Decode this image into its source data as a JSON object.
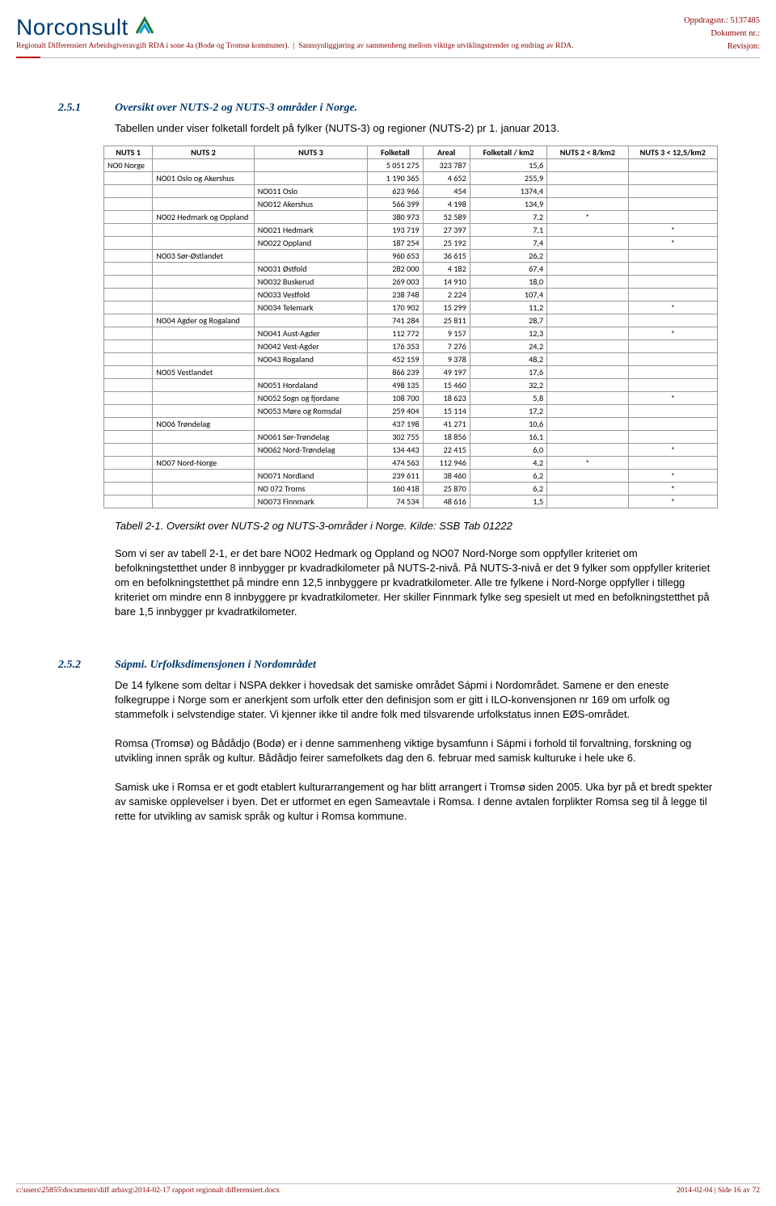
{
  "header": {
    "logo_name": "Norconsult",
    "sub_left": "Regionalt Differensiert Arbeidsgiveravgift RDA i sone 4a (Bodø og Tromsø kommuner).",
    "sub_right": "Sannsynliggjøring av sammenheng mellom viktige utviklingstrender og endring av RDA.",
    "right_l1": "Oppdragsnr.: 5137485",
    "right_l2": "Dokument nr.:",
    "right_l3": "Revisjon:"
  },
  "sec1": {
    "num": "2.5.1",
    "title": "Oversikt over NUTS-2 og NUTS-3 områder i Norge.",
    "intro": "Tabellen under viser folketall fordelt på fylker (NUTS-3) og regioner (NUTS-2) pr 1. januar 2013."
  },
  "table": {
    "headers": [
      "NUTS 1",
      "NUTS 2",
      "NUTS 3",
      "Folketall",
      "Areal",
      "Folketall / km2",
      "NUTS 2  < 8/km2",
      "NUTS 3 < 12,5/km2"
    ],
    "rows": [
      {
        "n1": "NO0 Norge",
        "n2": "",
        "n3": "",
        "f": "5 051 275",
        "a": "323 787",
        "d": "15,6",
        "s1": "",
        "s2": ""
      },
      {
        "n1": "",
        "n2": "NO01 Oslo og Akershus",
        "n3": "",
        "f": "1 190 365",
        "a": "4 652",
        "d": "255,9",
        "s1": "",
        "s2": ""
      },
      {
        "n1": "",
        "n2": "",
        "n3": "NO011 Oslo",
        "f": "623 966",
        "a": "454",
        "d": "1374,4",
        "s1": "",
        "s2": ""
      },
      {
        "n1": "",
        "n2": "",
        "n3": "NO012 Akershus",
        "f": "566 399",
        "a": "4 198",
        "d": "134,9",
        "s1": "",
        "s2": ""
      },
      {
        "n1": "",
        "n2": "NO02 Hedmark og Oppland",
        "n3": "",
        "f": "380 973",
        "a": "52 589",
        "d": "7,2",
        "s1": "*",
        "s2": ""
      },
      {
        "n1": "",
        "n2": "",
        "n3": "NO021 Hedmark",
        "f": "193 719",
        "a": "27 397",
        "d": "7,1",
        "s1": "",
        "s2": "*"
      },
      {
        "n1": "",
        "n2": "",
        "n3": "NO022 Oppland",
        "f": "187 254",
        "a": "25 192",
        "d": "7,4",
        "s1": "",
        "s2": "*"
      },
      {
        "n1": "",
        "n2": "NO03 Sør-Østlandet",
        "n3": "",
        "f": "960 653",
        "a": "36 615",
        "d": "26,2",
        "s1": "",
        "s2": ""
      },
      {
        "n1": "",
        "n2": "",
        "n3": "NO031 Østfold",
        "f": "282 000",
        "a": "4 182",
        "d": "67,4",
        "s1": "",
        "s2": ""
      },
      {
        "n1": "",
        "n2": "",
        "n3": "NO032 Buskerud",
        "f": "269 003",
        "a": "14 910",
        "d": "18,0",
        "s1": "",
        "s2": ""
      },
      {
        "n1": "",
        "n2": "",
        "n3": "NO033 Vestfold",
        "f": "238 748",
        "a": "2 224",
        "d": "107,4",
        "s1": "",
        "s2": ""
      },
      {
        "n1": "",
        "n2": "",
        "n3": "NO034 Telemark",
        "f": "170 902",
        "a": "15 299",
        "d": "11,2",
        "s1": "",
        "s2": "*"
      },
      {
        "n1": "",
        "n2": "NO04 Agder og Rogaland",
        "n3": "",
        "f": "741 284",
        "a": "25 811",
        "d": "28,7",
        "s1": "",
        "s2": ""
      },
      {
        "n1": "",
        "n2": "",
        "n3": "NO041 Aust-Agder",
        "f": "112 772",
        "a": "9 157",
        "d": "12,3",
        "s1": "",
        "s2": "*"
      },
      {
        "n1": "",
        "n2": "",
        "n3": "NO042 Vest-Agder",
        "f": "176 353",
        "a": "7 276",
        "d": "24,2",
        "s1": "",
        "s2": ""
      },
      {
        "n1": "",
        "n2": "",
        "n3": "NO043 Rogaland",
        "f": "452 159",
        "a": "9 378",
        "d": "48,2",
        "s1": "",
        "s2": ""
      },
      {
        "n1": "",
        "n2": "NO05 Vestlandet",
        "n3": "",
        "f": "866 239",
        "a": "49 197",
        "d": "17,6",
        "s1": "",
        "s2": ""
      },
      {
        "n1": "",
        "n2": "",
        "n3": "NO051 Hordaland",
        "f": "498 135",
        "a": "15 460",
        "d": "32,2",
        "s1": "",
        "s2": ""
      },
      {
        "n1": "",
        "n2": "",
        "n3": "NO052 Sogn og fjordane",
        "f": "108 700",
        "a": "18 623",
        "d": "5,8",
        "s1": "",
        "s2": "*"
      },
      {
        "n1": "",
        "n2": "",
        "n3": "NO053 Møre og Romsdal",
        "f": "259 404",
        "a": "15 114",
        "d": "17,2",
        "s1": "",
        "s2": ""
      },
      {
        "n1": "",
        "n2": "NO06 Trøndelag",
        "n3": "",
        "f": "437 198",
        "a": "41 271",
        "d": "10,6",
        "s1": "",
        "s2": ""
      },
      {
        "n1": "",
        "n2": "",
        "n3": "NO061 Sør-Trøndelag",
        "f": "302 755",
        "a": "18 856",
        "d": "16,1",
        "s1": "",
        "s2": ""
      },
      {
        "n1": "",
        "n2": "",
        "n3": "NO062 Nord-Trøndelag",
        "f": "134 443",
        "a": "22 415",
        "d": "6,0",
        "s1": "",
        "s2": "*"
      },
      {
        "n1": "",
        "n2": "NO07 Nord-Norge",
        "n3": "",
        "f": "474 563",
        "a": "112 946",
        "d": "4,2",
        "s1": "*",
        "s2": ""
      },
      {
        "n1": "",
        "n2": "",
        "n3": "NO071 Nordland",
        "f": "239 611",
        "a": "38 460",
        "d": "6,2",
        "s1": "",
        "s2": "*"
      },
      {
        "n1": "",
        "n2": "",
        "n3": "NO 072 Troms",
        "f": "160 418",
        "a": "25 870",
        "d": "6,2",
        "s1": "",
        "s2": "*"
      },
      {
        "n1": "",
        "n2": "",
        "n3": "NO073 Finnmark",
        "f": "74 534",
        "a": "48 616",
        "d": "1,5",
        "s1": "",
        "s2": "*"
      }
    ]
  },
  "caption": "Tabell 2-1.  Oversikt over NUTS-2 og NUTS-3-områder i Norge.  Kilde:  SSB Tab 01222",
  "para1": "Som vi ser av tabell 2-1, er det bare NO02 Hedmark og Oppland og NO07 Nord-Norge som oppfyller kriteriet om befolkningstetthet under 8 innbygger pr kvadradkilometer på NUTS-2-nivå. På NUTS-3-nivå er det 9 fylker som oppfyller kriteriet om en befolkningstetthet på mindre enn 12,5 innbyggere pr kvadratkilometer.  Alle tre fylkene i Nord-Norge oppfyller i tillegg kriteriet om mindre enn 8 innbyggere pr kvadratkilometer.  Her skiller Finnmark fylke seg spesielt ut med en befolkningstetthet på bare 1,5 innbygger pr kvadratkilometer.",
  "sec2": {
    "num": "2.5.2",
    "title": "Sápmi.  Urfolksdimensjonen i Nordområdet"
  },
  "para2": "De 14 fylkene som deltar i NSPA dekker i hovedsak det samiske området Sápmi i Nordområdet. Samene er den eneste folkegruppe i Norge som er anerkjent som urfolk etter den definisjon som er gitt i ILO-konvensjonen nr 169 om urfolk og stammefolk i selvstendige stater.  Vi kjenner ikke til andre folk med tilsvarende urfolkstatus innen EØS-området.",
  "para3": "Romsa (Tromsø) og Bådådjo (Bodø) er i denne sammenheng viktige bysamfunn i Sápmi i forhold til forvaltning, forskning og utvikling innen språk og kultur.  Bådådjo feirer samefolkets dag den 6. februar med samisk kulturuke i hele uke 6.",
  "para4": "Samisk uke i Romsa er et godt etablert kulturarrangement og har blitt arrangert i Tromsø siden 2005. Uka byr på et bredt spekter av samiske opplevelser i byen.  Det er utformet en egen Sameavtale i Romsa.  I denne avtalen forplikter Romsa seg til å legge til rette for utvikling av samisk språk og kultur i Romsa kommune.",
  "footer": {
    "left": "c:\\users\\25855\\documents\\diff arbavg\\2014-02-17 rapport regionalt differensiert.docx",
    "right": "2014-02-04 | Side 16 av 72"
  }
}
